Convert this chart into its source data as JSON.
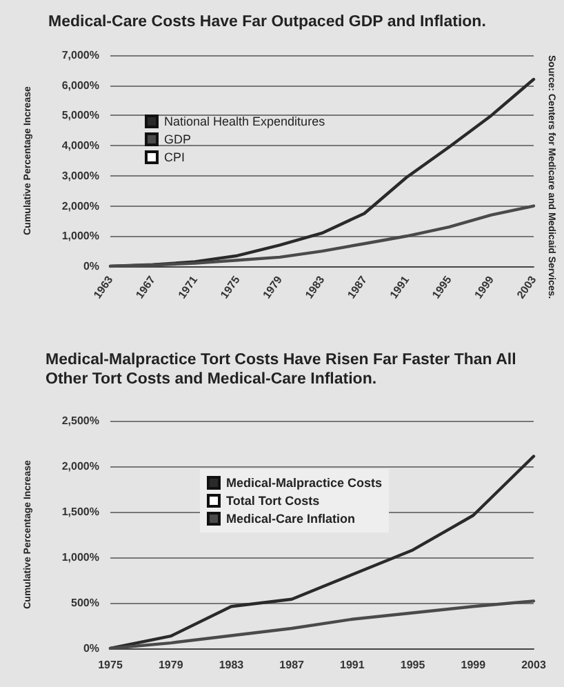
{
  "chart_data": [
    {
      "type": "line",
      "title": "Medical-Care Costs Have Far Outpaced GDP and Inflation.",
      "ylabel": "Cumulative Percentage Increase",
      "annotations": [
        "Source: Centers for Medicare and Medicaid Services."
      ],
      "x": [
        1963,
        1967,
        1971,
        1975,
        1979,
        1983,
        1987,
        1991,
        1995,
        1999,
        2003
      ],
      "series": [
        {
          "name": "National Health Expenditures",
          "color": "#2a2a2a",
          "values": [
            0,
            50,
            150,
            350,
            700,
            1100,
            1750,
            2950,
            3950,
            5000,
            6200
          ]
        },
        {
          "name": "GDP",
          "color": "#4a4a4a",
          "values": [
            0,
            40,
            100,
            200,
            300,
            500,
            750,
            1000,
            1300,
            1700,
            2000
          ]
        },
        {
          "name": "CPI",
          "color": "#ffffff",
          "values": [
            null,
            null,
            null,
            null,
            null,
            null,
            null,
            null,
            null,
            null,
            null
          ]
        }
      ],
      "xlim": [
        1963,
        2003
      ],
      "xticks": [
        1963,
        1967,
        1971,
        1975,
        1979,
        1983,
        1987,
        1991,
        1995,
        1999,
        2003
      ],
      "ylim": [
        0,
        7000
      ],
      "yticks": [
        {
          "value": 0,
          "label": "0%"
        },
        {
          "value": 1000,
          "label": "1,000%"
        },
        {
          "value": 2000,
          "label": "2,000%"
        },
        {
          "value": 3000,
          "label": "3,000%"
        },
        {
          "value": 4000,
          "label": "4,000%"
        },
        {
          "value": 5000,
          "label": "5,000%"
        },
        {
          "value": 6000,
          "label": "6,000%"
        },
        {
          "value": 7000,
          "label": "7,000%"
        }
      ],
      "grid": "y",
      "legend": "top left",
      "marker": "none",
      "line_style": "solid"
    },
    {
      "type": "line",
      "title": "Medical-Malpractice Tort Costs Have Risen Far Faster Than All Other Tort Costs and Medical-Care Inflation.",
      "ylabel": "Cumulative Percentage Increase",
      "x": [
        1975,
        1979,
        1983,
        1985,
        1987,
        1991,
        1995,
        1999,
        2003
      ],
      "series": [
        {
          "name": "Medical-Malpractice Costs",
          "color": "#2a2a2a",
          "values": [
            0,
            135,
            460,
            500,
            540,
            810,
            1080,
            1460,
            2110
          ]
        },
        {
          "name": "Total Tort Costs",
          "color": "#ffffff",
          "values": [
            null,
            null,
            null,
            null,
            null,
            null,
            null,
            null,
            null
          ]
        },
        {
          "name": "Medical-Care Inflation",
          "color": "#4a4a4a",
          "values": [
            0,
            60,
            140,
            180,
            220,
            320,
            390,
            460,
            520
          ]
        }
      ],
      "xlim": [
        1975,
        2003
      ],
      "xticks": [
        1975,
        1979,
        1983,
        1987,
        1991,
        1995,
        1999,
        2003
      ],
      "ylim": [
        0,
        2500
      ],
      "yticks": [
        {
          "value": 0,
          "label": "0%"
        },
        {
          "value": 500,
          "label": "500%"
        },
        {
          "value": 1000,
          "label": "1,000%"
        },
        {
          "value": 1500,
          "label": "1,500%"
        },
        {
          "value": 2000,
          "label": "2,000%"
        },
        {
          "value": 2500,
          "label": "2,500%"
        }
      ],
      "grid": "y",
      "legend": "top left",
      "marker": "none",
      "line_style": "solid"
    }
  ]
}
